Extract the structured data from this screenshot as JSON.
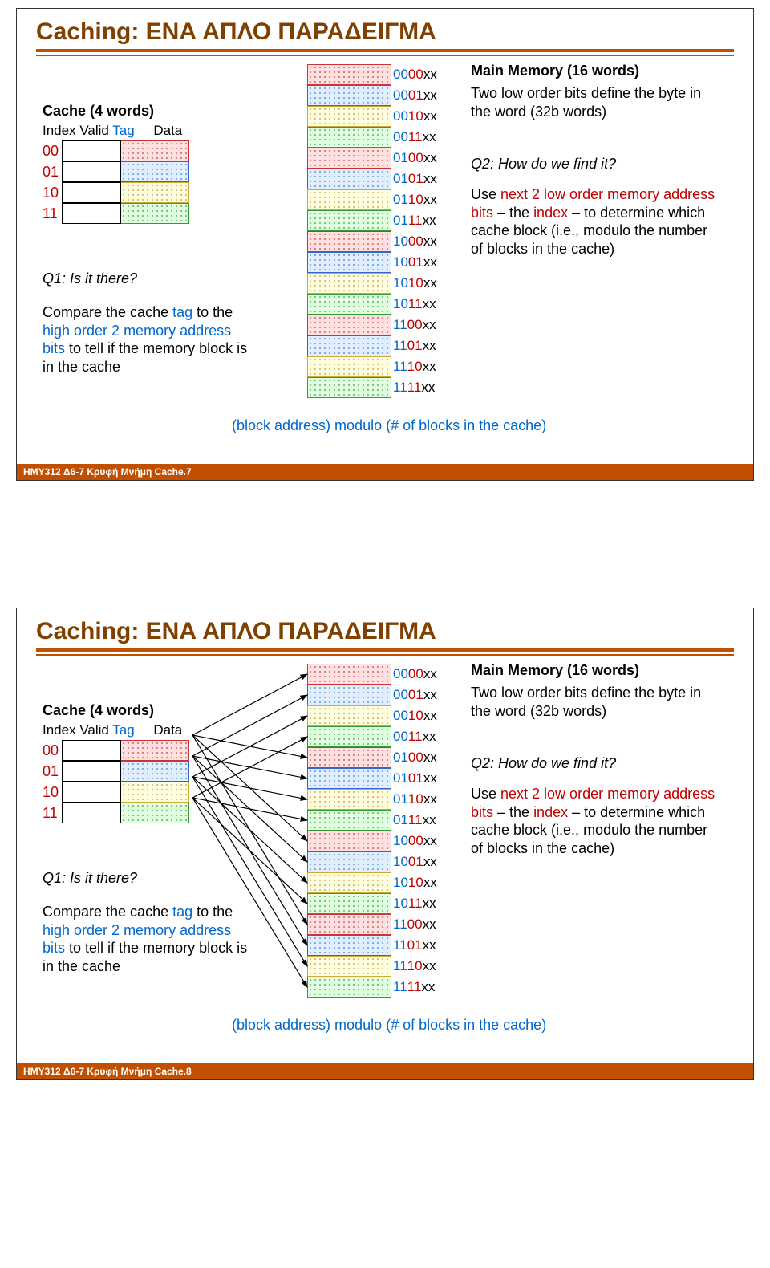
{
  "colors": {
    "title": "#804000",
    "rule_top": "#c05000",
    "rule_bottom": "#c05000",
    "footer_bg": "#c05000",
    "index_red": "#c00000",
    "tag_blue": "#0066cc",
    "addr_blue": "#0066cc",
    "kw_red": "#c00000",
    "formula": "#0066cc"
  },
  "patterns": {
    "row0": {
      "fill": "#ffe0e0",
      "dot": "#cc6666",
      "border": "#cc3333"
    },
    "row1": {
      "fill": "#e0eeff",
      "dot": "#6699cc",
      "border": "#3366cc"
    },
    "row2": {
      "fill": "#ffffe0",
      "dot": "#ccaa66",
      "border": "#ccaa33"
    },
    "row3": {
      "fill": "#e0ffe0",
      "dot": "#66aa66",
      "border": "#339933"
    }
  },
  "common": {
    "title": "Caching: ΕΝΑ ΑΠΛΟ ΠΑΡΑΔΕΙΓΜΑ",
    "cache_title": "Cache (4 words)",
    "header_index": "Index",
    "header_valid": "Valid",
    "header_tag": "Tag",
    "header_data": "Data",
    "cache_indices": [
      "00",
      "01",
      "10",
      "11"
    ],
    "q1": "Q1: Is it there?",
    "q1_body_pre": "Compare the cache ",
    "q1_kw_tag": "tag",
    "q1_body_mid": " to the ",
    "q1_kw_high": "high order 2 memory address bits",
    "q1_body_post": " to tell if the memory block is in the cache",
    "mm_title": "Main Memory (16 words)",
    "mm_note": "Two low order bits define the byte in the word (32b words)",
    "q2": "Q2: How do we find it?",
    "q2_pre": "Use ",
    "q2_kw1": "next 2 low order memory address bits",
    "q2_mid1": " – the ",
    "q2_kw2": "index",
    "q2_mid2": " – to determine which cache block (i.e., modulo the number of blocks in the cache)",
    "formula": "(block address) modulo (# of blocks in the cache)",
    "mm_rows": [
      {
        "p1": "00",
        "p2": "00",
        "suf": "xx",
        "pat": 0
      },
      {
        "p1": "00",
        "p2": "01",
        "suf": "xx",
        "pat": 1
      },
      {
        "p1": "00",
        "p2": "10",
        "suf": "xx",
        "pat": 2
      },
      {
        "p1": "00",
        "p2": "11",
        "suf": "xx",
        "pat": 3
      },
      {
        "p1": "01",
        "p2": "00",
        "suf": "xx",
        "pat": 0
      },
      {
        "p1": "01",
        "p2": "01",
        "suf": "xx",
        "pat": 1
      },
      {
        "p1": "01",
        "p2": "10",
        "suf": "xx",
        "pat": 2
      },
      {
        "p1": "01",
        "p2": "11",
        "suf": "xx",
        "pat": 3
      },
      {
        "p1": "10",
        "p2": "00",
        "suf": "xx",
        "pat": 0
      },
      {
        "p1": "10",
        "p2": "01",
        "suf": "xx",
        "pat": 1
      },
      {
        "p1": "10",
        "p2": "10",
        "suf": "xx",
        "pat": 2
      },
      {
        "p1": "10",
        "p2": "11",
        "suf": "xx",
        "pat": 3
      },
      {
        "p1": "11",
        "p2": "00",
        "suf": "xx",
        "pat": 0
      },
      {
        "p1": "11",
        "p2": "01",
        "suf": "xx",
        "pat": 1
      },
      {
        "p1": "11",
        "p2": "10",
        "suf": "xx",
        "pat": 2
      },
      {
        "p1": "11",
        "p2": "11",
        "suf": "xx",
        "pat": 3
      }
    ]
  },
  "slide1": {
    "footer": "HMY312  Δ6-7 Κρυφή Μνήμη Cache.7",
    "arrows": false
  },
  "slide2": {
    "footer": "HMY312  Δ6-7 Κρυφή Μνήμη Cache.8",
    "arrows": true
  }
}
